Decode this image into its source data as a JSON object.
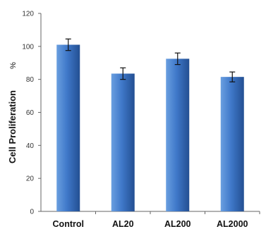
{
  "chart_data": {
    "type": "bar",
    "categories": [
      "Control",
      "AL20",
      "AL200",
      "AL2000"
    ],
    "values": [
      101,
      83.5,
      92.5,
      81.5
    ],
    "errors": [
      3.5,
      3.5,
      3.5,
      3.0
    ],
    "ylabel": "Cell Proliferation",
    "ylabel_unit": "%",
    "ylim": [
      0,
      120
    ],
    "yticks": [
      0,
      20,
      40,
      60,
      80,
      100,
      120
    ],
    "grid": false,
    "legend": "none",
    "colors": {
      "bar_light": "#6a9fe0",
      "bar_mid": "#3f78c9",
      "bar_dark": "#234f92",
      "axis": "#666666"
    }
  }
}
